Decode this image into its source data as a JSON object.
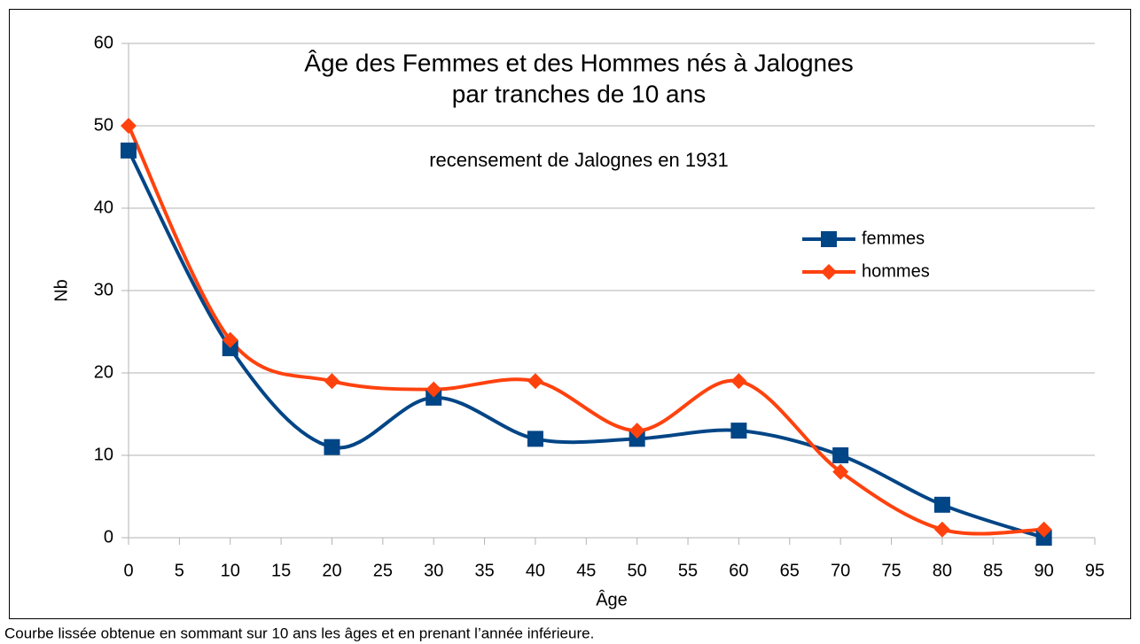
{
  "chart_data": {
    "type": "line",
    "title": [
      "Âge des Femmes et des Hommes nés à Jalognes",
      "par tranches de 10 ans"
    ],
    "subtitle": "recensement de Jalognes en 1931",
    "x_label": "Âge",
    "y_label": "Nb",
    "note": "Courbe lissée obtenue en sommant sur 10 ans les âges et en prenant l’année inférieure.",
    "x": [
      0,
      10,
      20,
      30,
      40,
      50,
      60,
      70,
      80,
      90
    ],
    "series": [
      {
        "name": "femmes",
        "color": "#004586",
        "marker": "square",
        "values": [
          47,
          23,
          11,
          17,
          12,
          12,
          13,
          10,
          4,
          0
        ]
      },
      {
        "name": "hommes",
        "color": "#ff420e",
        "marker": "diamond",
        "values": [
          50,
          24,
          19,
          18,
          19,
          13,
          19,
          8,
          1,
          1
        ]
      }
    ],
    "xlim": [
      0,
      95
    ],
    "xticks": [
      0,
      5,
      10,
      15,
      20,
      25,
      30,
      35,
      40,
      45,
      50,
      55,
      60,
      65,
      70,
      75,
      80,
      85,
      90,
      95
    ],
    "ylim": [
      0,
      60
    ],
    "yticks": [
      0,
      10,
      20,
      30,
      40,
      50,
      60
    ],
    "grid": true,
    "smooth": true,
    "legend": "right"
  }
}
